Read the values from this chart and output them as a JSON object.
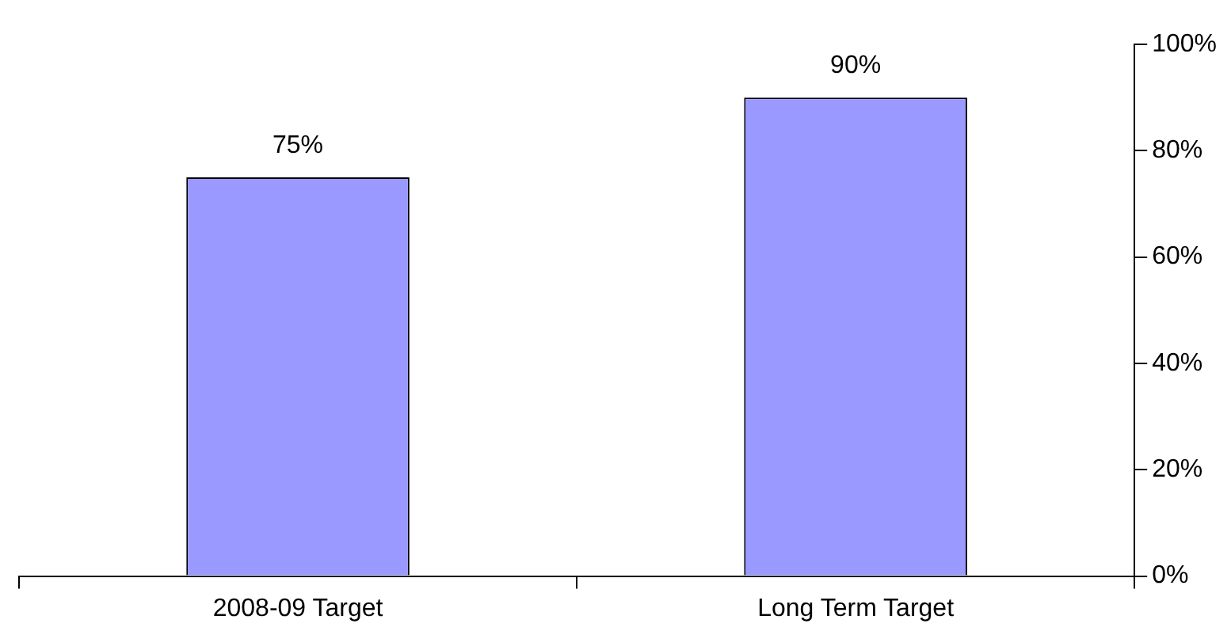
{
  "chart_data": {
    "type": "bar",
    "categories": [
      "2008-09 Target",
      "Long Term Target"
    ],
    "values": [
      75,
      90
    ],
    "color": "#9999ff",
    "value_labels": [
      "75%",
      "90%"
    ],
    "ylim": [
      0,
      100
    ],
    "yticks": [
      {
        "value": 0,
        "label": "0%"
      },
      {
        "value": 20,
        "label": "20%"
      },
      {
        "value": 40,
        "label": "40%"
      },
      {
        "value": 60,
        "label": "60%"
      },
      {
        "value": 80,
        "label": "80%"
      },
      {
        "value": 100,
        "label": "100%"
      }
    ],
    "legend": false
  }
}
